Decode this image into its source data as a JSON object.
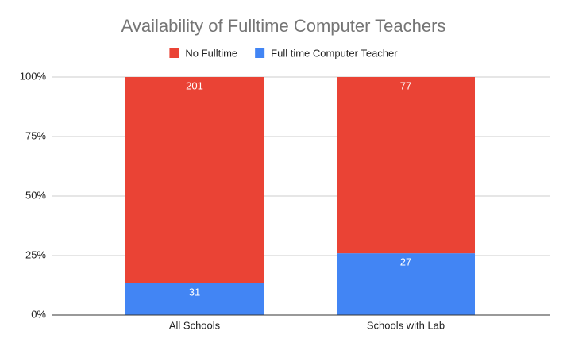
{
  "chart_data": {
    "type": "bar",
    "stacking": "percent",
    "title": "Availability of Fulltime Computer Teachers",
    "categories": [
      "All Schools",
      "Schools with Lab"
    ],
    "series": [
      {
        "name": "No Fulltime",
        "color": "#ea4335",
        "values": [
          201,
          77
        ]
      },
      {
        "name": "Full time Computer Teacher",
        "color": "#4285f4",
        "values": [
          31,
          27
        ]
      }
    ],
    "ylim": [
      0,
      100
    ],
    "yticks": [
      {
        "value": 0,
        "label": "0%"
      },
      {
        "value": 25,
        "label": "25%"
      },
      {
        "value": 50,
        "label": "50%"
      },
      {
        "value": 75,
        "label": "75%"
      },
      {
        "value": 100,
        "label": "100%"
      }
    ],
    "grid": true,
    "legend": "top"
  }
}
